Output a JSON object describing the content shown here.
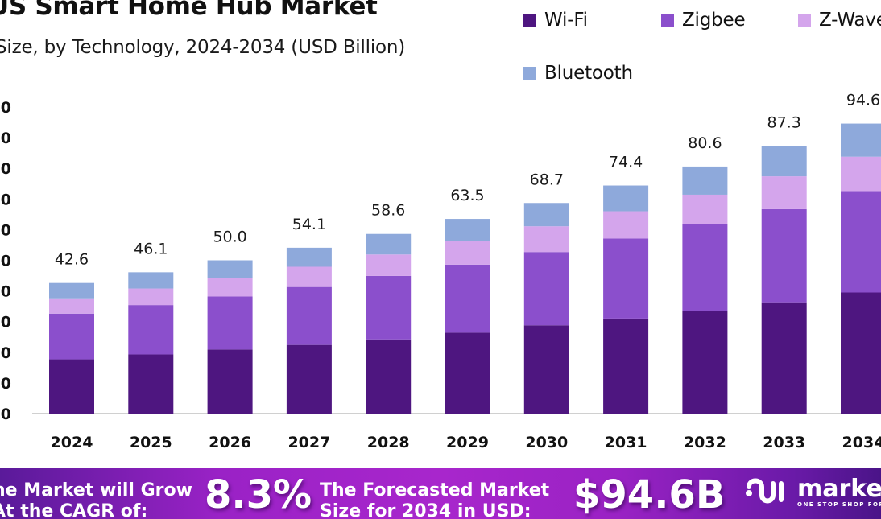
{
  "header": {
    "title": "US Smart Home Hub Market",
    "subtitle": "Size, by Technology, 2024-2034 (USD Billion)"
  },
  "colors": {
    "wifi": "#4e1680",
    "zigbee": "#8b4fcc",
    "zwave": "#d4a5ec",
    "bluetooth": "#8ea9db",
    "axis": "#d0d0d0"
  },
  "chart_data": {
    "type": "bar",
    "stacked": true,
    "title": "US Smart Home Hub Market",
    "subtitle": "Size, by Technology, 2024-2034 (USD Billion)",
    "xlabel": "",
    "ylabel": "",
    "ylim": [
      0,
      100
    ],
    "yticks": [
      0,
      10,
      20,
      30,
      40,
      50,
      60,
      70,
      80,
      90,
      100
    ],
    "ytick_labels_visible": [
      "0",
      "0",
      "0",
      "0",
      "0",
      "0",
      "0",
      "0",
      "0",
      "0",
      "0"
    ],
    "grid": false,
    "legend_position": "top-right",
    "categories": [
      "2024",
      "2025",
      "2026",
      "2027",
      "2028",
      "2029",
      "2030",
      "2031",
      "2032",
      "2033",
      "2034"
    ],
    "series": [
      {
        "name": "Wi-Fi",
        "color": "#4e1680",
        "values": [
          17.7,
          19.3,
          20.9,
          22.4,
          24.2,
          26.4,
          28.8,
          31.0,
          33.4,
          36.3,
          39.5
        ]
      },
      {
        "name": "Zigbee",
        "color": "#8b4fcc",
        "values": [
          14.9,
          16.1,
          17.3,
          18.9,
          20.7,
          22.2,
          23.9,
          26.1,
          28.3,
          30.4,
          33.1
        ]
      },
      {
        "name": "Z-Wave",
        "color": "#d4a5ec",
        "values": [
          5.0,
          5.4,
          6.0,
          6.6,
          7.0,
          7.8,
          8.4,
          8.9,
          9.7,
          10.7,
          11.2
        ]
      },
      {
        "name": "Bluetooth",
        "color": "#8ea9db",
        "values": [
          5.0,
          5.3,
          5.8,
          6.2,
          6.7,
          7.1,
          7.6,
          8.4,
          9.2,
          9.9,
          10.8
        ]
      }
    ],
    "totals": [
      42.6,
      46.1,
      50.0,
      54.1,
      58.6,
      63.5,
      68.7,
      74.4,
      80.6,
      87.3,
      94.6
    ],
    "total_labels": [
      "42.6",
      "46.1",
      "50.0",
      "54.1",
      "58.6",
      "63.5",
      "68.7",
      "74.4",
      "80.6",
      "87.3",
      "94.6"
    ]
  },
  "legend": [
    {
      "label": "Wi-Fi",
      "color": "#4e1680"
    },
    {
      "label": "Zigbee",
      "color": "#8b4fcc"
    },
    {
      "label": "Z-Wave",
      "color": "#d4a5ec"
    },
    {
      "label": "Bluetooth",
      "color": "#8ea9db"
    }
  ],
  "banner": {
    "cagr_text_line1": "The Market will Grow",
    "cagr_text_line2": "At the CAGR of:",
    "cagr_value": "8.3%",
    "forecast_text_line1": "The Forecasted Market",
    "forecast_text_line2": "Size for 2034 in USD:",
    "forecast_value": "$94.6B",
    "logo_word": "market.us",
    "logo_tagline": "ONE STOP SHOP FOR THE REPORTS"
  }
}
